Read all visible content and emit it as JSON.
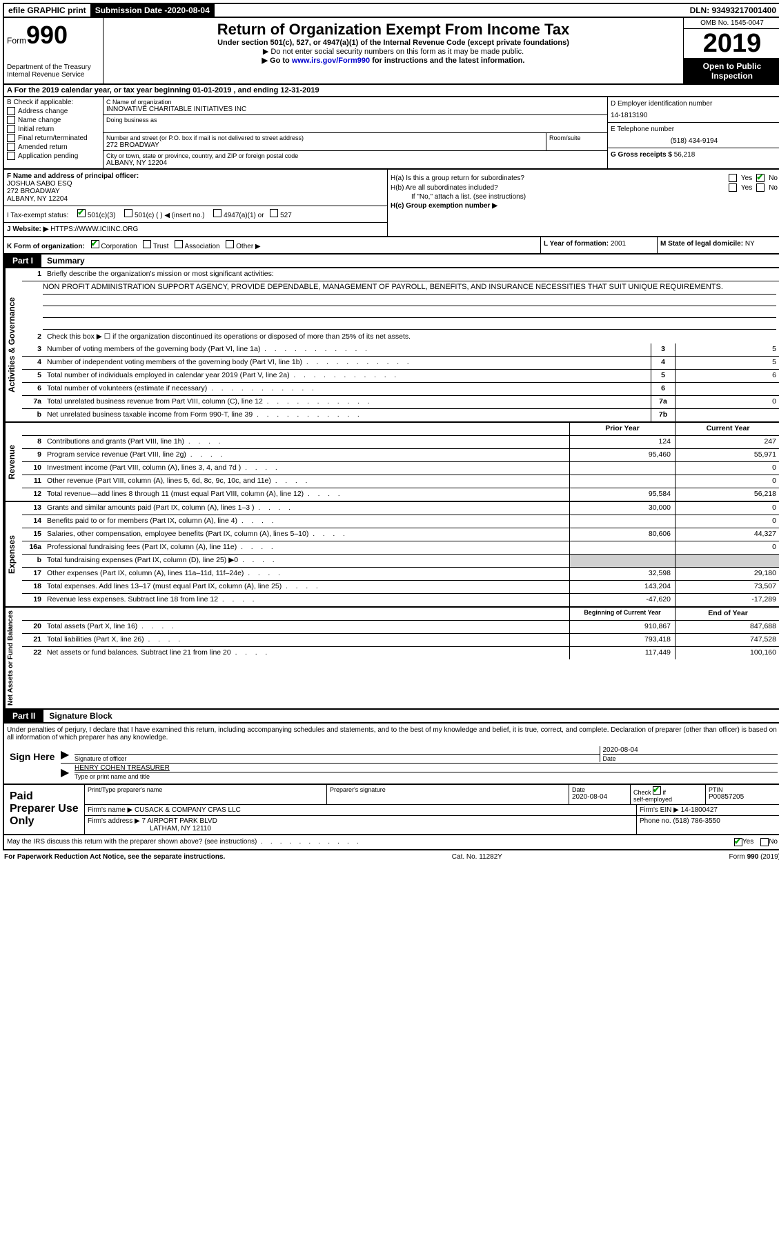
{
  "topbar": {
    "efile": "efile GRAPHIC print",
    "sub_label": "Submission Date - ",
    "sub_date": "2020-08-04",
    "dln": "DLN: 93493217001400"
  },
  "header": {
    "form_prefix": "Form",
    "form_num": "990",
    "dept": "Department of the Treasury\nInternal Revenue Service",
    "title": "Return of Organization Exempt From Income Tax",
    "sub1": "Under section 501(c), 527, or 4947(a)(1) of the Internal Revenue Code (except private foundations)",
    "sub2": "▶ Do not enter social security numbers on this form as it may be made public.",
    "sub3_pre": "▶ Go to ",
    "sub3_link": "www.irs.gov/Form990",
    "sub3_post": " for instructions and the latest information.",
    "omb": "OMB No. 1545-0047",
    "year": "2019",
    "open": "Open to Public Inspection"
  },
  "line_a": "A  For the 2019 calendar year, or tax year beginning 01-01-2019     , and ending 12-31-2019",
  "box_b": {
    "title": "B Check if applicable:",
    "opts": [
      "Address change",
      "Name change",
      "Initial return",
      "Final return/terminated",
      "Amended return",
      "Application pending"
    ]
  },
  "box_c": {
    "label_name": "C Name of organization",
    "org_name": "INNOVATIVE CHARITABLE INITIATIVES INC",
    "dba_label": "Doing business as",
    "addr_label": "Number and street (or P.O. box if mail is not delivered to street address)",
    "addr": "272 BROADWAY",
    "room_label": "Room/suite",
    "city_label": "City or town, state or province, country, and ZIP or foreign postal code",
    "city": "ALBANY, NY  12204"
  },
  "box_d": {
    "label": "D Employer identification number",
    "value": "14-1813190"
  },
  "box_e": {
    "label": "E Telephone number",
    "value": "(518) 434-9194"
  },
  "box_g": {
    "label": "G Gross receipts $ ",
    "value": "56,218"
  },
  "box_f": {
    "label": "F  Name and address of principal officer:",
    "name": "JOSHUA SABO ESQ",
    "addr1": "272 BROADWAY",
    "addr2": "ALBANY, NY  12204"
  },
  "box_h": {
    "ha": "H(a)  Is this a group return for subordinates?",
    "hb": "H(b)  Are all subordinates included?",
    "hb_note": "If \"No,\" attach a list. (see instructions)",
    "hc": "H(c)  Group exemption number ▶",
    "yes": "Yes",
    "no": "No"
  },
  "row_i": {
    "label": "I    Tax-exempt status:",
    "opts": [
      "501(c)(3)",
      "501(c) (   ) ◀ (insert no.)",
      "4947(a)(1) or",
      "527"
    ]
  },
  "row_j": {
    "label": "J   Website: ▶  ",
    "value": "HTTPS://WWW.ICIINC.ORG"
  },
  "row_k": {
    "label": "K Form of organization:",
    "opts": [
      "Corporation",
      "Trust",
      "Association",
      "Other ▶"
    ],
    "l": "L Year of formation: ",
    "l_val": "2001",
    "m": "M State of legal domicile: ",
    "m_val": "NY"
  },
  "part1": {
    "label": "Part I",
    "title": "Summary"
  },
  "gov": {
    "side": "Activities & Governance",
    "l1": "Briefly describe the organization's mission or most significant activities:",
    "mission": "NON PROFIT ADMINISTRATION SUPPORT AGENCY, PROVIDE DEPENDABLE, MANAGEMENT OF PAYROLL, BENEFITS, AND INSURANCE NECESSITIES THAT SUIT UNIQUE REQUIREMENTS.",
    "l2": "Check this box ▶ ☐  if the organization discontinued its operations or disposed of more than 25% of its net assets.",
    "rows": [
      {
        "n": "3",
        "label": "Number of voting members of the governing body (Part VI, line 1a)",
        "box": "3",
        "v": "5"
      },
      {
        "n": "4",
        "label": "Number of independent voting members of the governing body (Part VI, line 1b)",
        "box": "4",
        "v": "5"
      },
      {
        "n": "5",
        "label": "Total number of individuals employed in calendar year 2019 (Part V, line 2a)",
        "box": "5",
        "v": "6"
      },
      {
        "n": "6",
        "label": "Total number of volunteers (estimate if necessary)",
        "box": "6",
        "v": ""
      },
      {
        "n": "7a",
        "label": "Total unrelated business revenue from Part VIII, column (C), line 12",
        "box": "7a",
        "v": "0"
      },
      {
        "n": "b",
        "label": "Net unrelated business taxable income from Form 990-T, line 39",
        "box": "7b",
        "v": ""
      }
    ]
  },
  "rev": {
    "side": "Revenue",
    "header_prior": "Prior Year",
    "header_curr": "Current Year",
    "rows": [
      {
        "n": "8",
        "label": "Contributions and grants (Part VIII, line 1h)",
        "p": "124",
        "c": "247"
      },
      {
        "n": "9",
        "label": "Program service revenue (Part VIII, line 2g)",
        "p": "95,460",
        "c": "55,971"
      },
      {
        "n": "10",
        "label": "Investment income (Part VIII, column (A), lines 3, 4, and 7d )",
        "p": "",
        "c": "0"
      },
      {
        "n": "11",
        "label": "Other revenue (Part VIII, column (A), lines 5, 6d, 8c, 9c, 10c, and 11e)",
        "p": "",
        "c": "0"
      },
      {
        "n": "12",
        "label": "Total revenue—add lines 8 through 11 (must equal Part VIII, column (A), line 12)",
        "p": "95,584",
        "c": "56,218"
      }
    ]
  },
  "exp": {
    "side": "Expenses",
    "rows": [
      {
        "n": "13",
        "label": "Grants and similar amounts paid (Part IX, column (A), lines 1–3 )",
        "p": "30,000",
        "c": "0"
      },
      {
        "n": "14",
        "label": "Benefits paid to or for members (Part IX, column (A), line 4)",
        "p": "",
        "c": "0"
      },
      {
        "n": "15",
        "label": "Salaries, other compensation, employee benefits (Part IX, column (A), lines 5–10)",
        "p": "80,606",
        "c": "44,327"
      },
      {
        "n": "16a",
        "label": "Professional fundraising fees (Part IX, column (A), line 11e)",
        "p": "",
        "c": "0"
      },
      {
        "n": "b",
        "label": "Total fundraising expenses (Part IX, column (D), line 25) ▶0",
        "p": "GRAY",
        "c": "GRAY"
      },
      {
        "n": "17",
        "label": "Other expenses (Part IX, column (A), lines 11a–11d, 11f–24e)",
        "p": "32,598",
        "c": "29,180"
      },
      {
        "n": "18",
        "label": "Total expenses. Add lines 13–17 (must equal Part IX, column (A), line 25)",
        "p": "143,204",
        "c": "73,507"
      },
      {
        "n": "19",
        "label": "Revenue less expenses. Subtract line 18 from line 12",
        "p": "-47,620",
        "c": "-17,289"
      }
    ]
  },
  "net": {
    "side": "Net Assets or Fund Balances",
    "header_beg": "Beginning of Current Year",
    "header_end": "End of Year",
    "rows": [
      {
        "n": "20",
        "label": "Total assets (Part X, line 16)",
        "p": "910,867",
        "c": "847,688"
      },
      {
        "n": "21",
        "label": "Total liabilities (Part X, line 26)",
        "p": "793,418",
        "c": "747,528"
      },
      {
        "n": "22",
        "label": "Net assets or fund balances. Subtract line 21 from line 20",
        "p": "117,449",
        "c": "100,160"
      }
    ]
  },
  "part2": {
    "label": "Part II",
    "title": "Signature Block"
  },
  "sig": {
    "decl": "Under penalties of perjury, I declare that I have examined this return, including accompanying schedules and statements, and to the best of my knowledge and belief, it is true, correct, and complete. Declaration of preparer (other than officer) is based on all information of which preparer has any knowledge.",
    "sign_here": "Sign Here",
    "sig_officer": "Signature of officer",
    "date_label": "Date",
    "date_val": "2020-08-04",
    "name": "HENRY COHEN  TREASURER",
    "name_label": "Type or print name and title"
  },
  "prep": {
    "side": "Paid Preparer Use Only",
    "h_print": "Print/Type preparer's name",
    "h_sig": "Preparer's signature",
    "h_date": "Date",
    "date_val": "2020-08-04",
    "h_check": "Check ☑ if self-employed",
    "h_ptin": "PTIN",
    "ptin_val": "P00857205",
    "firm_name_label": "Firm's name      ▶",
    "firm_name": "CUSACK & COMPANY CPAS LLC",
    "firm_ein_label": "Firm's EIN ▶ ",
    "firm_ein": "14-1800427",
    "firm_addr_label": "Firm's address ▶",
    "firm_addr1": "7 AIRPORT PARK BLVD",
    "firm_addr2": "LATHAM, NY  12110",
    "phone_label": "Phone no. ",
    "phone": "(518) 786-3550"
  },
  "discuss": {
    "label": "May the IRS discuss this return with the preparer shown above? (see instructions)",
    "yes": "Yes",
    "no": "No"
  },
  "footer": {
    "pra": "For Paperwork Reduction Act Notice, see the separate instructions.",
    "cat": "Cat. No. 11282Y",
    "form": "Form 990 (2019)"
  }
}
